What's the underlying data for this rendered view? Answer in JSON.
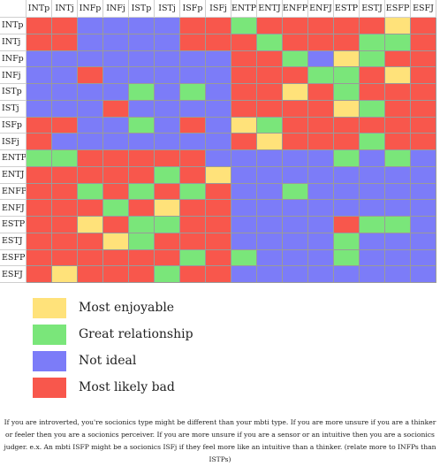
{
  "types": [
    "INTp",
    "INTj",
    "INFp",
    "INFj",
    "ISTp",
    "ISTj",
    "ISFp",
    "ISFj",
    "ENTP",
    "ENTJ",
    "ENFP",
    "ENFJ",
    "ESTP",
    "ESTJ",
    "ESFP",
    "ESFJ"
  ],
  "colors": {
    "Y": "#ffe27a",
    "G": "#7ae67a",
    "B": "#7c7cf8",
    "R": "#f8574c"
  },
  "matrix": [
    "RRBBBBRRGRRRRRYR",
    "RRBBBBRRRGRRRGGR",
    "BBBBBBBBRRGBYGRR",
    "BBRBBBBBRRRGGRYR",
    "BBBBGBGBRRYRGRRR",
    "BBBRBBBBRRRRYGRR",
    "RRBBGBRBYGRRRRRR",
    "RBBBBBBBRYRRRGRR",
    "GGRRRRRBBBBBGBGB",
    "RRRRRGRYBBBBBBBB",
    "RRGRGRGRBBGBBBBB",
    "RRRGRYRRBBBBBBBB",
    "RRYRGGRRBBBBRGGB",
    "RRRYGRRRBBBBGBBB",
    "RRRRRRGRGBBBGBBB",
    "RYRRRGRRBBBBBBBB"
  ],
  "legend": [
    {
      "key": "Y",
      "label": "Most enjoyable"
    },
    {
      "key": "G",
      "label": "Great relationship"
    },
    {
      "key": "B",
      "label": "Not ideal"
    },
    {
      "key": "R",
      "label": "Most likely bad"
    }
  ],
  "footnote": "If you are introverted, you're socionics type might be different than your mbti type. If you are more unsure if you are a thinker or feeler then you are a socionics perceiver. If you are more unsure if you are a sensor or an intuitive then you are a socionics judger. e.x. An mbti ISFP might be a socionics ISFj if they feel more like an intuitive than a thinker. (relate more to INFPs than ISTPs)"
}
